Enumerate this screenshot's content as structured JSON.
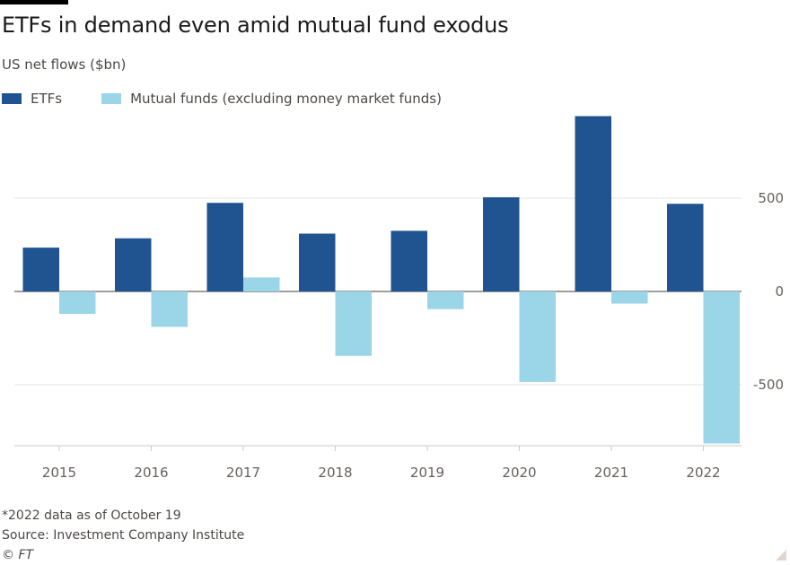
{
  "title": "ETFs in demand even amid mutual fund exodus",
  "subtitle": "US net flows ($bn)",
  "legend": [
    {
      "label": "ETFs",
      "color": "#1f5490"
    },
    {
      "label": "Mutual funds (excluding money market funds)",
      "color": "#9ad6e8"
    }
  ],
  "chart_data": {
    "type": "bar",
    "categories": [
      "2015",
      "2016",
      "2017",
      "2018",
      "2019",
      "2020",
      "2021",
      "2022"
    ],
    "series": [
      {
        "name": "ETFs",
        "color": "#1f5490",
        "values": [
          235,
          285,
          475,
          310,
          325,
          505,
          940,
          470
        ]
      },
      {
        "name": "Mutual funds (excluding money market funds)",
        "color": "#9ad6e8",
        "values": [
          -120,
          -190,
          75,
          -345,
          -95,
          -485,
          -65,
          -815
        ]
      }
    ],
    "yticks": [
      500,
      0,
      -500
    ],
    "ytick_labels": [
      "500",
      "0",
      "-500"
    ],
    "ylim": [
      -830,
      940
    ],
    "grid": true,
    "y_axis_side": "right",
    "legend_position": "top-left"
  },
  "footnotes": {
    "note": "*2022 data as of October 19",
    "source": "Source: Investment Company Institute",
    "copyright": "© FT"
  }
}
